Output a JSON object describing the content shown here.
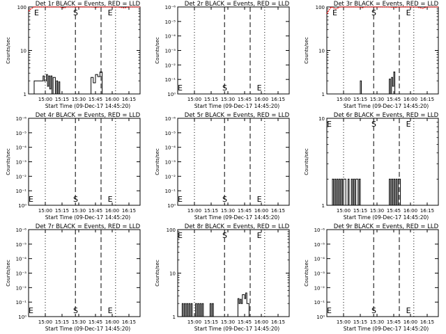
{
  "chart_data": [
    {
      "type": "line",
      "title": "Det 1r BLACK = Events, RED = LLD",
      "ylabel": "Counts/sec",
      "xlabel": "Start Time (09-Dec-17 14:45:20)",
      "x_ticks": [
        "15:00",
        "15:15",
        "15:30",
        "15:45",
        "16:00",
        "16:15"
      ],
      "y_ticks": [
        "1",
        "10",
        "100"
      ],
      "ylim": [
        1,
        100
      ],
      "log": true,
      "markers": [
        {
          "label": "E",
          "x": "14:50"
        },
        {
          "label": "S",
          "x": "15:25"
        },
        {
          "label": "E",
          "x": "15:56"
        }
      ],
      "red": [
        [
          0.0,
          80
        ],
        [
          0.02,
          90
        ],
        [
          0.05,
          100
        ],
        [
          0.08,
          100
        ],
        [
          0.12,
          100
        ],
        [
          0.2,
          100
        ],
        [
          0.28,
          100
        ],
        [
          0.32,
          95
        ],
        [
          0.34,
          100
        ],
        [
          0.45,
          100
        ],
        [
          0.55,
          100
        ],
        [
          0.62,
          98
        ],
        [
          0.64,
          100
        ],
        [
          0.72,
          100
        ],
        [
          0.8,
          100
        ],
        [
          0.86,
          95
        ],
        [
          0.9,
          100
        ],
        [
          1.0,
          100
        ]
      ],
      "black": [
        [
          0.05,
          1
        ],
        [
          0.05,
          2
        ],
        [
          0.12,
          2
        ],
        [
          0.13,
          2.6
        ],
        [
          0.14,
          2
        ],
        [
          0.16,
          2.8
        ],
        [
          0.17,
          1.5
        ],
        [
          0.18,
          2.6
        ],
        [
          0.19,
          1.3
        ],
        [
          0.2,
          2.6
        ],
        [
          0.21,
          1
        ],
        [
          0.22,
          2.4
        ],
        [
          0.24,
          1
        ],
        [
          0.25,
          2
        ],
        [
          0.26,
          1
        ],
        [
          0.27,
          1.9
        ],
        [
          0.28,
          1
        ],
        [
          0.3,
          1
        ],
        [
          0.55,
          1
        ],
        [
          0.56,
          2.4
        ],
        [
          0.58,
          1.8
        ],
        [
          0.6,
          2.8
        ],
        [
          0.62,
          2.5
        ],
        [
          0.64,
          3.2
        ],
        [
          0.66,
          1
        ],
        [
          0.7,
          1
        ]
      ]
    },
    {
      "type": "line",
      "title": "Det 2r BLACK = Events, RED = LLD",
      "ylabel": "Counts/sec",
      "xlabel": "Start Time (09-Dec-17 14:45:20)",
      "x_ticks": [
        "15:00",
        "15:15",
        "15:30",
        "15:45",
        "16:00",
        "16:15"
      ],
      "y_ticks": [
        "10⁰",
        "10⁻¹",
        "10⁻²",
        "10⁻³",
        "10⁻⁴",
        "10⁻⁵",
        "10⁻⁶"
      ],
      "ylim": [
        0,
        1
      ],
      "log": false,
      "markers": [
        {
          "label": "E",
          "x": "14:45"
        },
        {
          "label": "S",
          "x": "15:25"
        },
        {
          "label": "E",
          "x": "15:56"
        }
      ],
      "red": [],
      "black": []
    },
    {
      "type": "line",
      "title": "Det 3r BLACK = Events, RED = LLD",
      "ylabel": "Counts/sec",
      "xlabel": "Start Time (09-Dec-17 14:45:20)",
      "x_ticks": [
        "15:00",
        "15:15",
        "15:30",
        "15:45",
        "16:00",
        "16:15"
      ],
      "y_ticks": [
        "1",
        "10",
        "100"
      ],
      "ylim": [
        1,
        100
      ],
      "log": true,
      "markers": [
        {
          "label": "E",
          "x": "14:50"
        },
        {
          "label": "S",
          "x": "15:25"
        },
        {
          "label": "E",
          "x": "15:56"
        }
      ],
      "red": [
        [
          0.0,
          70
        ],
        [
          0.02,
          85
        ],
        [
          0.04,
          100
        ],
        [
          0.08,
          90
        ],
        [
          0.12,
          100
        ],
        [
          0.2,
          100
        ],
        [
          0.28,
          100
        ],
        [
          0.32,
          96
        ],
        [
          0.34,
          100
        ],
        [
          0.45,
          100
        ],
        [
          0.55,
          100
        ],
        [
          0.62,
          97
        ],
        [
          0.64,
          100
        ],
        [
          0.72,
          100
        ],
        [
          0.8,
          100
        ],
        [
          0.86,
          93
        ],
        [
          0.9,
          100
        ],
        [
          1.0,
          100
        ]
      ],
      "black": [
        [
          0.3,
          1
        ],
        [
          0.3,
          2
        ],
        [
          0.31,
          1
        ],
        [
          0.55,
          1
        ],
        [
          0.56,
          2.2
        ],
        [
          0.57,
          1
        ],
        [
          0.58,
          2.4
        ],
        [
          0.59,
          1.5
        ],
        [
          0.6,
          3.2
        ],
        [
          0.61,
          1
        ],
        [
          0.62,
          1
        ]
      ]
    },
    {
      "type": "line",
      "title": "Det 4r BLACK = Events, RED = LLD",
      "ylabel": "Counts/sec",
      "xlabel": "Start Time (09-Dec-17 14:45:20)",
      "x_ticks": [
        "15:00",
        "15:15",
        "15:30",
        "15:45",
        "16:00",
        "16:15"
      ],
      "y_ticks": [
        "10⁰",
        "10⁻¹",
        "10⁻²",
        "10⁻³",
        "10⁻⁴",
        "10⁻⁵",
        "10⁻⁶"
      ],
      "ylim": [
        0,
        1
      ],
      "log": false,
      "markers": [
        {
          "label": "E",
          "x": "14:45"
        },
        {
          "label": "S",
          "x": "15:25"
        },
        {
          "label": "E",
          "x": "15:56"
        }
      ],
      "red": [],
      "black": []
    },
    {
      "type": "line",
      "title": "Det 5r BLACK = Events, RED = LLD",
      "ylabel": "Counts/sec",
      "xlabel": "Start Time (09-Dec-17 14:45:20)",
      "x_ticks": [
        "15:00",
        "15:15",
        "15:30",
        "15:45",
        "16:00",
        "16:15"
      ],
      "y_ticks": [
        "10⁰",
        "10⁻¹",
        "10⁻²",
        "10⁻³",
        "10⁻⁴",
        "10⁻⁵",
        "10⁻⁶"
      ],
      "ylim": [
        0,
        1
      ],
      "log": false,
      "markers": [
        {
          "label": "E",
          "x": "14:45"
        },
        {
          "label": "S",
          "x": "15:25"
        },
        {
          "label": "E",
          "x": "15:56"
        }
      ],
      "red": [],
      "black": []
    },
    {
      "type": "line",
      "title": "Det 6r BLACK = Events, RED = LLD",
      "ylabel": "Counts/sec",
      "xlabel": "Start Time (09-Dec-17 14:45:20)",
      "x_ticks": [
        "15:00",
        "15:15",
        "15:30",
        "15:45",
        "16:00",
        "16:15"
      ],
      "y_ticks": [
        "1",
        "10"
      ],
      "ylim": [
        1,
        10
      ],
      "log": true,
      "markers": [
        {
          "label": "E",
          "x": "14:45"
        },
        {
          "label": "S",
          "x": "15:25"
        },
        {
          "label": "E",
          "x": "15:56"
        }
      ],
      "red": [],
      "black": [
        [
          0.04,
          1
        ],
        [
          0.05,
          2
        ],
        [
          0.06,
          1
        ],
        [
          0.07,
          2
        ],
        [
          0.08,
          1
        ],
        [
          0.09,
          2
        ],
        [
          0.1,
          1
        ],
        [
          0.11,
          2
        ],
        [
          0.12,
          1
        ],
        [
          0.13,
          2
        ],
        [
          0.14,
          1
        ],
        [
          0.15,
          2
        ],
        [
          0.17,
          1
        ],
        [
          0.19,
          2
        ],
        [
          0.2,
          1
        ],
        [
          0.22,
          2
        ],
        [
          0.23,
          1
        ],
        [
          0.24,
          2
        ],
        [
          0.25,
          1
        ],
        [
          0.26,
          2
        ],
        [
          0.28,
          1
        ],
        [
          0.29,
          2
        ],
        [
          0.3,
          1
        ],
        [
          0.55,
          1
        ],
        [
          0.56,
          2
        ],
        [
          0.57,
          1
        ],
        [
          0.58,
          2
        ],
        [
          0.59,
          1
        ],
        [
          0.6,
          2
        ],
        [
          0.61,
          1
        ],
        [
          0.62,
          2
        ],
        [
          0.63,
          1
        ],
        [
          0.64,
          2
        ],
        [
          0.66,
          1
        ]
      ]
    },
    {
      "type": "line",
      "title": "Det 7r BLACK = Events, RED = LLD",
      "ylabel": "Counts/sec",
      "xlabel": "Start Time (09-Dec-17 14:45:20)",
      "x_ticks": [
        "15:00",
        "15:15",
        "15:30",
        "15:45",
        "16:00",
        "16:15"
      ],
      "y_ticks": [
        "10⁰",
        "10⁻¹",
        "10⁻²",
        "10⁻³",
        "10⁻⁴",
        "10⁻⁵",
        "10⁻⁶"
      ],
      "ylim": [
        0,
        1
      ],
      "log": false,
      "markers": [
        {
          "label": "E",
          "x": "14:45"
        },
        {
          "label": "S",
          "x": "15:25"
        },
        {
          "label": "E",
          "x": "15:56"
        }
      ],
      "red": [],
      "black": []
    },
    {
      "type": "line",
      "title": "Det 8r BLACK = Events, RED = LLD",
      "ylabel": "Counts/sec",
      "xlabel": "Start Time (09-Dec-17 14:45:20)",
      "x_ticks": [
        "15:00",
        "15:15",
        "15:30",
        "15:45",
        "16:00",
        "16:15"
      ],
      "y_ticks": [
        "1",
        "10",
        "100"
      ],
      "ylim": [
        1,
        100
      ],
      "log": true,
      "markers": [
        {
          "label": "E",
          "x": "14:45"
        },
        {
          "label": "S",
          "x": "15:25"
        },
        {
          "label": "E",
          "x": "15:56"
        }
      ],
      "red": [],
      "black": [
        [
          0.04,
          1
        ],
        [
          0.04,
          2
        ],
        [
          0.05,
          1
        ],
        [
          0.06,
          2
        ],
        [
          0.07,
          1
        ],
        [
          0.08,
          2
        ],
        [
          0.09,
          1
        ],
        [
          0.1,
          2
        ],
        [
          0.11,
          1
        ],
        [
          0.12,
          2
        ],
        [
          0.13,
          1
        ],
        [
          0.15,
          1
        ],
        [
          0.16,
          2
        ],
        [
          0.17,
          1
        ],
        [
          0.18,
          2
        ],
        [
          0.19,
          1
        ],
        [
          0.2,
          2
        ],
        [
          0.21,
          1
        ],
        [
          0.22,
          2
        ],
        [
          0.23,
          1
        ],
        [
          0.28,
          1
        ],
        [
          0.29,
          2
        ],
        [
          0.3,
          1
        ],
        [
          0.31,
          2
        ],
        [
          0.32,
          1
        ],
        [
          0.53,
          1
        ],
        [
          0.54,
          2.6
        ],
        [
          0.55,
          2
        ],
        [
          0.56,
          2.5
        ],
        [
          0.57,
          2
        ],
        [
          0.58,
          3.2
        ],
        [
          0.6,
          2.6
        ],
        [
          0.61,
          3.5
        ],
        [
          0.62,
          2
        ],
        [
          0.64,
          1
        ]
      ]
    },
    {
      "type": "line",
      "title": "Det 9r BLACK = Events, RED = LLD",
      "ylabel": "Counts/sec",
      "xlabel": "Start Time (09-Dec-17 14:45:20)",
      "x_ticks": [
        "15:00",
        "15:15",
        "15:30",
        "15:45",
        "16:00",
        "16:15"
      ],
      "y_ticks": [
        "10⁰",
        "10⁻¹",
        "10⁻²",
        "10⁻³",
        "10⁻⁴",
        "10⁻⁵",
        "10⁻⁶"
      ],
      "ylim": [
        0,
        1
      ],
      "log": false,
      "markers": [
        {
          "label": "E",
          "x": "14:45"
        },
        {
          "label": "S",
          "x": "15:25"
        },
        {
          "label": "E",
          "x": "15:56"
        }
      ],
      "red": [],
      "black": []
    }
  ],
  "colors": {
    "events": "#000000",
    "lld": "#ff0000",
    "background": "#ffffff"
  }
}
